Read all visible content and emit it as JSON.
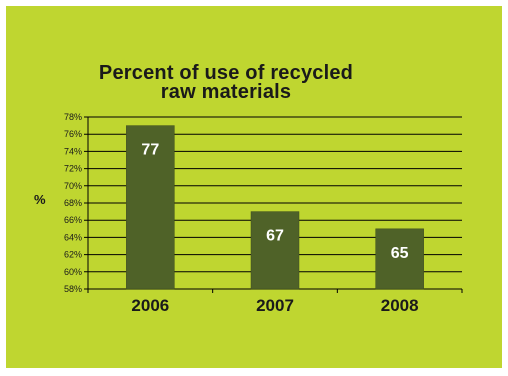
{
  "chart_data": {
    "type": "bar",
    "title_lines": [
      "Percent of use of recycled",
      "raw materials"
    ],
    "ylabel": "%",
    "categories": [
      "2006",
      "2007",
      "2008"
    ],
    "values": [
      77,
      67,
      65
    ],
    "data_labels": [
      "77",
      "67",
      "65"
    ],
    "ylim": [
      58,
      78
    ],
    "yticks": [
      "58%",
      "60%",
      "62%",
      "64%",
      "66%",
      "68%",
      "70%",
      "72%",
      "74%",
      "76%",
      "78%"
    ],
    "grid": true,
    "colors": {
      "bar": "#4f6228",
      "background": "#bfd630",
      "grid": "#000000"
    }
  }
}
